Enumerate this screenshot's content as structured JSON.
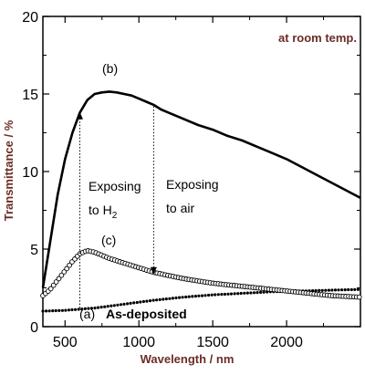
{
  "chart_data": {
    "type": "line",
    "title": "",
    "xlabel": "Wavelength / nm",
    "ylabel": "Transmittance / %",
    "xlim": [
      350,
      2500
    ],
    "ylim": [
      0,
      20
    ],
    "xticks": [
      500,
      1000,
      1500,
      2000
    ],
    "yticks": [
      0,
      5,
      10,
      15,
      20
    ],
    "grid": false,
    "legend": "none",
    "series": [
      {
        "label": "(a) As-deposited",
        "marker": "dot",
        "color": "#000000",
        "x": [
          350,
          500,
          700,
          900,
          1100,
          1300,
          1500,
          1700,
          1900,
          2100,
          2300,
          2500
        ],
        "y": [
          1.0,
          1.05,
          1.2,
          1.45,
          1.7,
          1.9,
          2.05,
          2.15,
          2.25,
          2.3,
          2.35,
          2.4
        ]
      },
      {
        "label": "(b)",
        "marker": "none",
        "color": "#000000",
        "x": [
          350,
          400,
          450,
          500,
          550,
          600,
          650,
          700,
          750,
          800,
          850,
          900,
          950,
          1000,
          1050,
          1100,
          1150,
          1200,
          1300,
          1400,
          1500,
          1600,
          1700,
          1800,
          1900,
          2000,
          2100,
          2200,
          2300,
          2400,
          2500
        ],
        "y": [
          2.5,
          5.5,
          8.5,
          10.8,
          12.5,
          13.8,
          14.6,
          15.0,
          15.1,
          15.15,
          15.1,
          15.0,
          14.9,
          14.7,
          14.5,
          14.3,
          14.0,
          13.8,
          13.4,
          13.0,
          12.7,
          12.3,
          12.0,
          11.6,
          11.2,
          10.8,
          10.3,
          9.8,
          9.3,
          8.8,
          8.3
        ]
      },
      {
        "label": "(c)",
        "marker": "open-circle",
        "color": "#000000",
        "x": [
          350,
          400,
          450,
          500,
          550,
          600,
          650,
          700,
          750,
          800,
          900,
          1000,
          1100,
          1200,
          1300,
          1400,
          1500,
          1600,
          1700,
          1800,
          1900,
          2000,
          2100,
          2200,
          2300,
          2400,
          2500
        ],
        "y": [
          2.0,
          2.4,
          3.0,
          3.6,
          4.2,
          4.7,
          4.9,
          4.8,
          4.6,
          4.4,
          4.1,
          3.8,
          3.5,
          3.3,
          3.1,
          2.95,
          2.8,
          2.7,
          2.6,
          2.5,
          2.4,
          2.3,
          2.2,
          2.1,
          2.0,
          1.95,
          1.9
        ]
      }
    ],
    "annotations": [
      {
        "text": "at room temp."
      },
      {
        "text": "(b)"
      },
      {
        "text": "(c)"
      },
      {
        "text": "(a)"
      },
      {
        "text": "As-deposited"
      },
      {
        "text": "Exposing"
      },
      {
        "text": "to H"
      },
      {
        "text": "2"
      },
      {
        "text": "Exposing"
      },
      {
        "text": "to air"
      }
    ],
    "arrows": [
      {
        "x": 600,
        "from_y": 1.2,
        "to_y": 13.6,
        "direction": "up"
      },
      {
        "x": 1100,
        "from_y": 14.2,
        "to_y": 3.6,
        "direction": "down"
      }
    ]
  }
}
